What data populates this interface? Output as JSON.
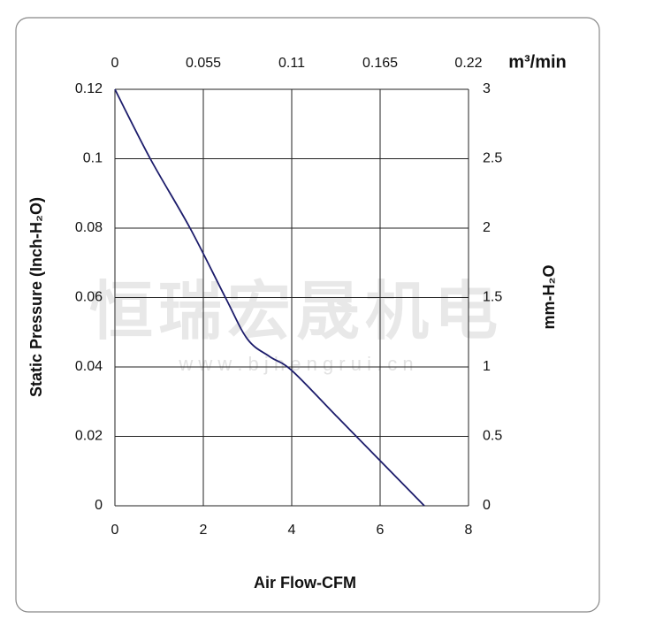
{
  "chart_data": {
    "type": "line",
    "xlabel": "Air Flow-CFM",
    "ylabel": "Static Pressure (Inch-H₂O)",
    "x2label": "m³/min",
    "y2label": "mm-H₂O",
    "watermark": [
      "恒瑞宏晟机电",
      "w w w . b j h e n g r u i . c n"
    ],
    "x": [
      0,
      0.8,
      1.7,
      2.5,
      3,
      3.5,
      4,
      5,
      6,
      7
    ],
    "values": [
      0.12,
      0.1,
      0.08,
      0.06,
      0.048,
      0.043,
      0.039,
      0.026,
      0.013,
      0
    ],
    "color": "#1c1c6b",
    "xlim": [
      0,
      8
    ],
    "xticks": [
      0,
      2,
      4,
      6,
      8
    ],
    "ylim": [
      0,
      0.12
    ],
    "yticks": [
      0,
      0.02,
      0.04,
      0.06,
      0.08,
      0.1,
      0.12
    ],
    "x2lim": [
      0,
      0.22
    ],
    "x2ticks": [
      0,
      0.055,
      0.11,
      0.165,
      0.22
    ],
    "y2lim": [
      0,
      3
    ],
    "y2ticks": [
      0,
      0.5,
      1,
      1.5,
      2,
      2.5,
      3
    ],
    "grid": true
  }
}
